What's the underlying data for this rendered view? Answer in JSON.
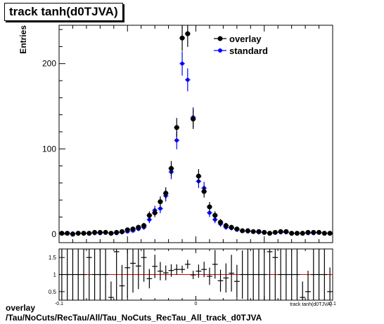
{
  "title": "track tanh(d0TJVA)",
  "caption": {
    "line1": "overlay",
    "line2": "/Tau/NoCuts/RecTau/All/Tau_NoCuts_RecTau_All_track_d0TJVA"
  },
  "colors": {
    "overlay": "#000000",
    "standard": "#0000ff",
    "ratio_line": "#cc0000"
  },
  "chart_data": [
    {
      "type": "scatter",
      "title": "track tanh(d0TJVA)",
      "ylabel": "Entries",
      "xlabel": "",
      "xlim": [
        -0.1,
        0.1
      ],
      "ylim": [
        -10,
        245
      ],
      "yticks": [
        0,
        100,
        200
      ],
      "ytick_labels": [
        "0",
        "100",
        "200"
      ],
      "legend": {
        "placement": "top-right",
        "entries": [
          "overlay",
          "standard"
        ]
      },
      "series": [
        {
          "name": "overlay",
          "marker": "circle",
          "x": [
            -0.098,
            -0.094,
            -0.09,
            -0.086,
            -0.082,
            -0.078,
            -0.074,
            -0.07,
            -0.066,
            -0.062,
            -0.058,
            -0.054,
            -0.05,
            -0.046,
            -0.042,
            -0.038,
            -0.034,
            -0.03,
            -0.026,
            -0.022,
            -0.018,
            -0.014,
            -0.01,
            -0.006,
            -0.002,
            0.002,
            0.006,
            0.01,
            0.014,
            0.018,
            0.022,
            0.026,
            0.03,
            0.034,
            0.038,
            0.042,
            0.046,
            0.05,
            0.054,
            0.058,
            0.062,
            0.066,
            0.07,
            0.074,
            0.078,
            0.082,
            0.086,
            0.09,
            0.094,
            0.098
          ],
          "y": [
            1,
            1,
            0,
            1,
            1,
            1,
            2,
            2,
            2,
            1,
            2,
            3,
            5,
            6,
            8,
            10,
            22,
            25,
            38,
            48,
            77,
            125,
            230,
            235,
            135,
            68,
            50,
            32,
            22,
            14,
            10,
            8,
            6,
            4,
            4,
            3,
            3,
            2,
            1,
            2,
            3,
            3,
            1,
            1,
            1,
            2,
            2,
            2,
            1,
            1
          ]
        },
        {
          "name": "standard",
          "marker": "circle",
          "x": [
            -0.098,
            -0.094,
            -0.09,
            -0.086,
            -0.082,
            -0.078,
            -0.074,
            -0.07,
            -0.066,
            -0.062,
            -0.058,
            -0.054,
            -0.05,
            -0.046,
            -0.042,
            -0.038,
            -0.034,
            -0.03,
            -0.026,
            -0.022,
            -0.018,
            -0.014,
            -0.01,
            -0.006,
            -0.002,
            0.002,
            0.006,
            0.01,
            0.014,
            0.018,
            0.022,
            0.026,
            0.03,
            0.034,
            0.038,
            0.042,
            0.046,
            0.05,
            0.054,
            0.058,
            0.062,
            0.066,
            0.07,
            0.074,
            0.078,
            0.082,
            0.086,
            0.09,
            0.094,
            0.098
          ],
          "y": [
            1,
            1,
            1,
            1,
            1,
            1,
            1,
            1,
            2,
            1,
            1,
            2,
            3,
            4,
            6,
            8,
            17,
            28,
            30,
            45,
            73,
            110,
            200,
            181,
            137,
            62,
            54,
            25,
            17,
            12,
            8,
            7,
            5,
            4,
            3,
            3,
            2,
            2,
            1,
            2,
            2,
            2,
            1,
            1,
            1,
            1,
            1,
            2,
            1,
            1
          ]
        }
      ]
    },
    {
      "type": "scatter",
      "xlabel": "track tanh(d0TJVA)",
      "ylabel": "",
      "xlim": [
        -0.1,
        0.1
      ],
      "ylim": [
        0.25,
        1.75
      ],
      "xticks": [
        -0.1,
        0,
        0.1
      ],
      "xtick_labels": [
        "-0.1",
        "0",
        "0.1"
      ],
      "yticks": [
        0.5,
        1,
        1.5
      ],
      "ytick_labels": [
        "0.5",
        "1",
        "1.5"
      ],
      "reference_line": 1,
      "series": [
        {
          "name": "",
          "marker": "cross",
          "x": [
            -0.098,
            -0.094,
            -0.09,
            -0.086,
            -0.082,
            -0.078,
            -0.074,
            -0.07,
            -0.066,
            -0.062,
            -0.058,
            -0.054,
            -0.05,
            -0.046,
            -0.042,
            -0.038,
            -0.034,
            -0.03,
            -0.026,
            -0.022,
            -0.018,
            -0.014,
            -0.01,
            -0.006,
            -0.002,
            0.002,
            0.006,
            0.01,
            0.014,
            0.018,
            0.022,
            0.026,
            0.03,
            0.034,
            0.038,
            0.042,
            0.046,
            0.05,
            0.054,
            0.058,
            0.062,
            0.066,
            0.07,
            0.074,
            0.078,
            0.082,
            0.086,
            0.09,
            0.094,
            0.098
          ],
          "y": [
            1.0,
            1.0,
            1.0,
            1.0,
            1.0,
            1.5,
            1.0,
            1.0,
            1.0,
            0.33,
            1.67,
            0.67,
            1.2,
            1.33,
            1.25,
            1.5,
            0.88,
            1.24,
            1.1,
            1.05,
            1.12,
            1.15,
            1.15,
            1.3,
            0.99,
            1.1,
            1.15,
            0.95,
            1.3,
            0.82,
            0.9,
            1.04,
            0.8,
            1.0,
            1.0,
            1.0,
            1.0,
            1.0,
            1.67,
            1.5,
            1.0,
            1.0,
            1.0,
            1.0,
            0.33,
            0.5,
            1.0,
            1.0,
            1.0,
            0.5
          ]
        }
      ]
    }
  ]
}
